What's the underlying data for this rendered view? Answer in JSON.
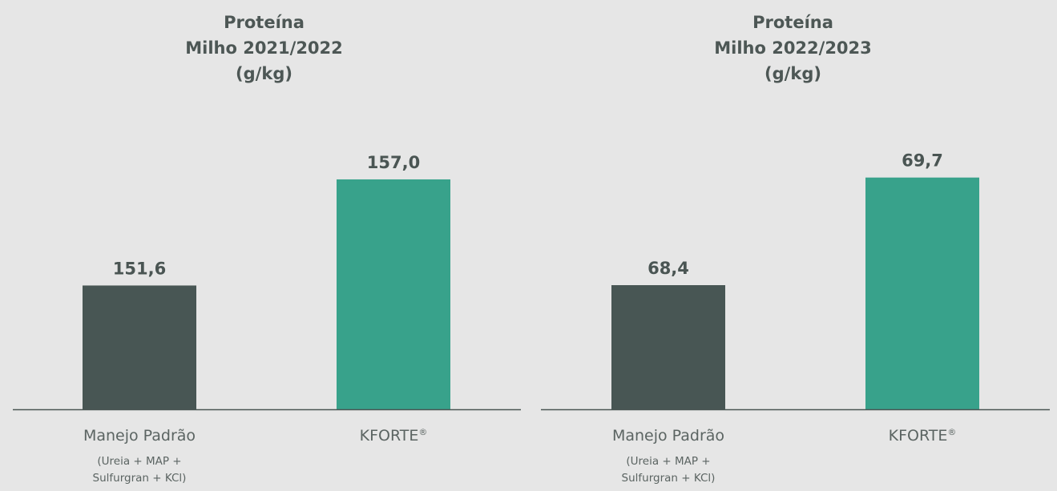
{
  "colors": {
    "background": "#e6e6e6",
    "manejo_padrao": "#485654",
    "kforte": "#38a28b",
    "axis": "#4a5553"
  },
  "chart_data": [
    {
      "type": "bar",
      "title": [
        "Proteína",
        "Milho 2021/2022",
        "(g/kg)"
      ],
      "categories": [
        "Manejo Padrão",
        "KFORTE®"
      ],
      "category_notes": [
        "(Ureia + MAP +\nSulfurgran + KCl)",
        ""
      ],
      "values": [
        151.6,
        157.0
      ],
      "value_labels": [
        "151,6",
        "157,0"
      ],
      "colors": [
        "#485654",
        "#38a28b"
      ],
      "ylim": [
        145.3,
        159.2
      ],
      "grid": false,
      "legend": "none"
    },
    {
      "type": "bar",
      "title": [
        "Proteína",
        "Milho 2022/2023",
        "(g/kg)"
      ],
      "categories": [
        "Manejo Padrão",
        "KFORTE®"
      ],
      "category_notes": [
        "(Ureia + MAP +\nSulfurgran + KCl)",
        ""
      ],
      "values": [
        68.4,
        69.7
      ],
      "value_labels": [
        "68,4",
        "69,7"
      ],
      "colors": [
        "#485654",
        "#38a28b"
      ],
      "ylim": [
        66.9,
        70.2
      ],
      "grid": false,
      "legend": "none"
    }
  ]
}
